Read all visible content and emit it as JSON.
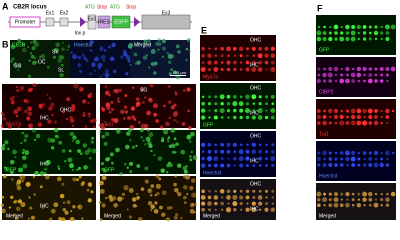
{
  "panel_a": {
    "label": "A",
    "title": "CB2R locus",
    "boxes": [
      "Promoter",
      "Ex1",
      "Ex2",
      "Ex3",
      "IRES",
      "EGFP",
      "Ex3"
    ],
    "markers": [
      "ATG",
      "Stop",
      "ATG",
      "Stop"
    ],
    "loxp": "lox p"
  },
  "panel_b": {
    "label": "B",
    "channels": [
      "CB2R",
      "Hoechst",
      "Merged"
    ],
    "regions": [
      "SG",
      "SV",
      "OC",
      "SL"
    ],
    "scale": "100 µm"
  },
  "panel_c": {
    "label": "C",
    "channels": [
      "Myo7a",
      "GFP",
      "Merged"
    ],
    "ihc": [
      "IHC",
      "IHC",
      "IHC"
    ],
    "ohc": "OHC"
  },
  "panel_d": {
    "label": "D",
    "region": "SG",
    "channels": [
      "Tuj1",
      "GFP",
      "Merged"
    ]
  },
  "panel_e": {
    "label": "E",
    "channels": [
      "Myo7a",
      "GFP",
      "Hoechst",
      "Merged"
    ],
    "ohc": [
      "OHC",
      "OHC",
      "OHC",
      "OHC"
    ],
    "ihc": [
      "IHC",
      "IHC",
      "IHC",
      "IHC"
    ]
  },
  "panel_f": {
    "label": "F",
    "channels": [
      "GFP",
      "CtBP2",
      "Tuj1",
      "Hoechst",
      "Merged"
    ]
  }
}
